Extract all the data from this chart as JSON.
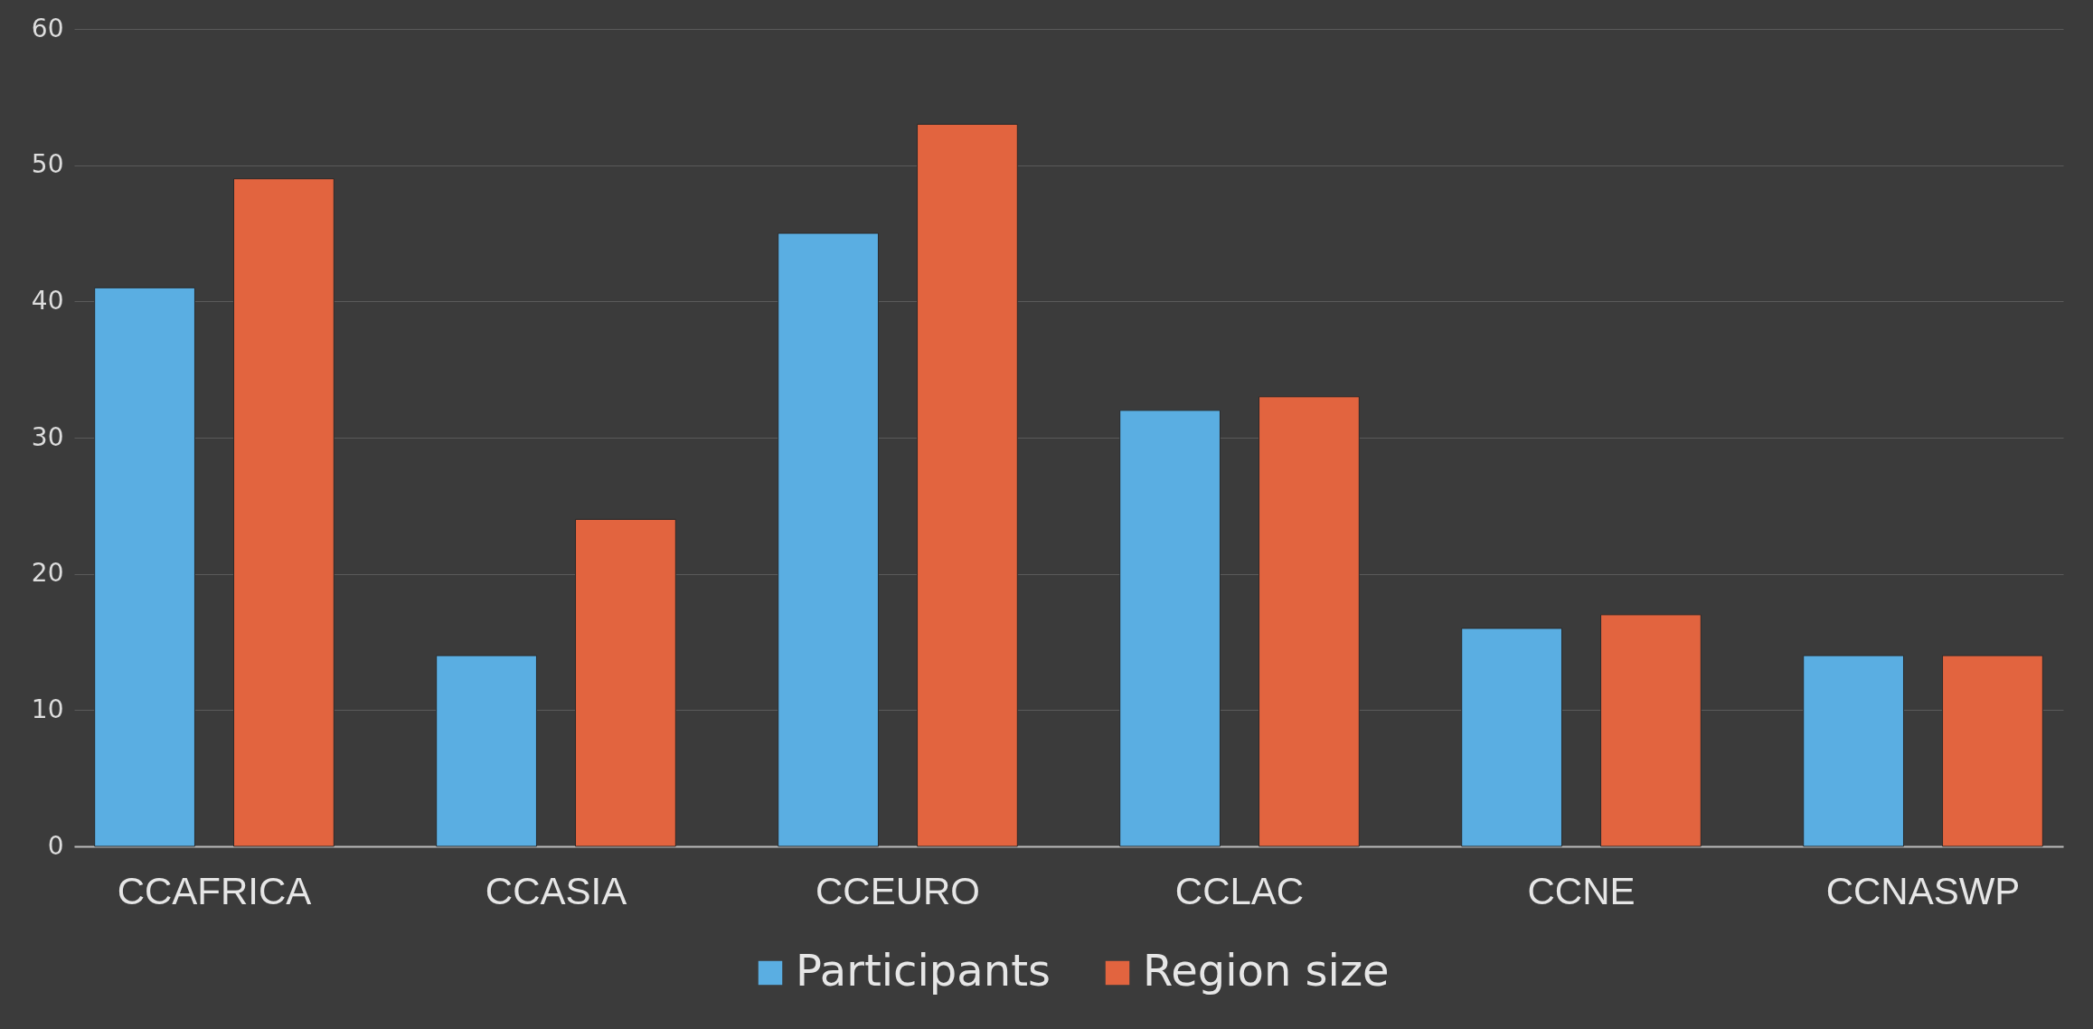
{
  "chart_data": {
    "type": "bar",
    "categories": [
      "CCAFRICA",
      "CCASIA",
      "CCEURO",
      "CCLAC",
      "CCNE",
      "CCNASWP"
    ],
    "series": [
      {
        "name": "Participants",
        "color": "#5aaee2",
        "values": [
          41,
          14,
          45,
          32,
          16,
          14
        ]
      },
      {
        "name": "Region size",
        "color": "#e2643f",
        "values": [
          49,
          24,
          53,
          33,
          17,
          14
        ]
      }
    ],
    "ylim": [
      0,
      60
    ],
    "yticks": [
      0,
      10,
      20,
      30,
      40,
      50,
      60
    ],
    "grid": "y",
    "legend": "bottom"
  }
}
